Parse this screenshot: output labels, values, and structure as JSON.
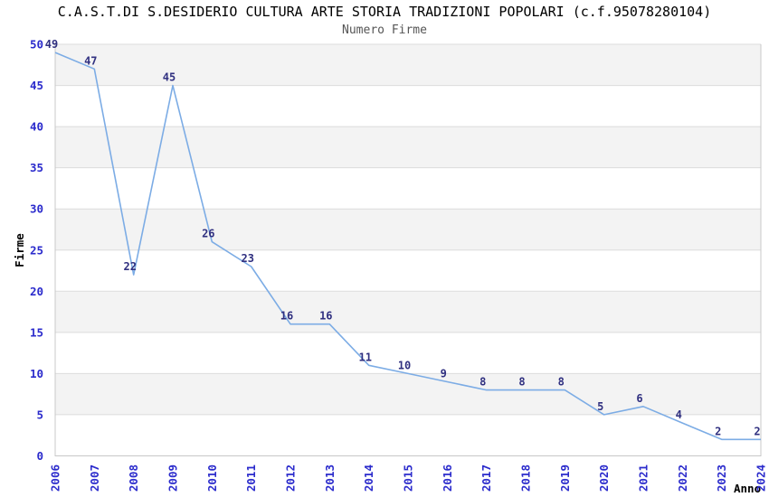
{
  "header": {
    "title": "C.A.S.T.DI S.DESIDERIO CULTURA ARTE STORIA TRADIZIONI POPOLARI (c.f.95078280104)",
    "subtitle": "Numero Firme"
  },
  "chart_data": {
    "type": "line",
    "title": "C.A.S.T.DI S.DESIDERIO CULTURA ARTE STORIA TRADIZIONI POPOLARI (c.f.95078280104)",
    "subtitle": "Numero Firme",
    "series_name": "Numero Firme",
    "categories": [
      "2006",
      "2007",
      "2008",
      "2009",
      "2010",
      "2011",
      "2012",
      "2013",
      "2014",
      "2015",
      "2016",
      "2017",
      "2018",
      "2019",
      "2020",
      "2021",
      "2022",
      "2023",
      "2024"
    ],
    "values": [
      49,
      47,
      22,
      45,
      26,
      23,
      16,
      16,
      11,
      10,
      9,
      8,
      8,
      8,
      5,
      6,
      4,
      2,
      2
    ],
    "xlabel": "Anno",
    "ylabel": "Firme",
    "ylim": [
      0,
      50
    ],
    "ytick_step": 5,
    "yticks": [
      0,
      5,
      10,
      15,
      20,
      25,
      30,
      35,
      40,
      45,
      50
    ],
    "grid": true,
    "alternating_bands": true,
    "point_labels_shown": true,
    "legend": "none",
    "colors": {
      "line": "#7CACE5",
      "tick_label": "#2B2BCC",
      "point_label": "#303080",
      "band": "#F3F3F3",
      "gridline": "#DCDCDC",
      "axis_border": "#C8C8C8",
      "title": "#000000",
      "subtitle": "#555555",
      "axis_title": "#000000",
      "background": "#FFFFFF"
    }
  }
}
